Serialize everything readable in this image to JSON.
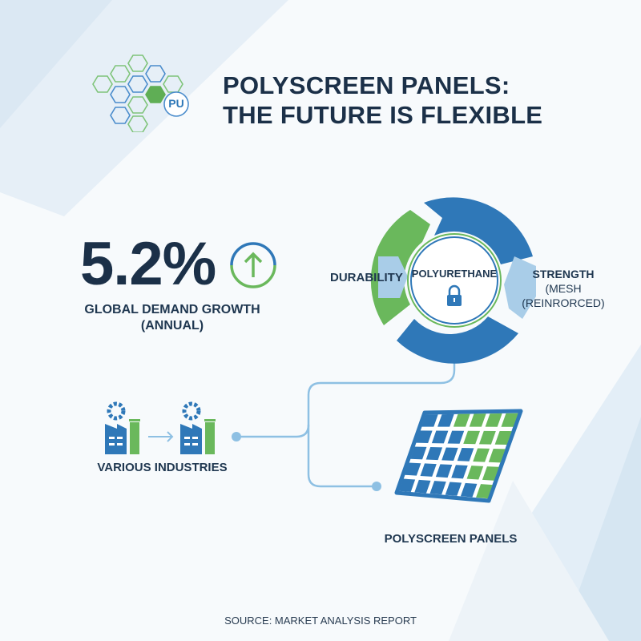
{
  "header": {
    "title_line1": "POLYSCREEN PANELS:",
    "title_line2": "THE FUTURE IS FLEXIBLE",
    "logo_text": "PU"
  },
  "stat": {
    "value": "5.2%",
    "label_line1": "GLOBAL DEMAND GROWTH",
    "label_line2": "(ANNUAL)",
    "trend_icon": "arrow-up-circle-icon"
  },
  "cycle": {
    "center_label": "POLYURETHANE",
    "center_icon": "lock-icon",
    "left_label": "DURABILITY",
    "right_label_line1": "STRENGTH",
    "right_label_line2": "(MESH",
    "right_label_line3": "(REINRORCED)"
  },
  "industries": {
    "label": "VARIOUS INDUSTRIES",
    "icon": "factory-icon"
  },
  "panels": {
    "label": "POLYSCREEN PANELS",
    "icon": "solar-panel-grid-icon"
  },
  "footer": {
    "source": "SOURCE: MARKET ANALYSIS REPORT"
  },
  "colors": {
    "blue": "#2f78b8",
    "green": "#6ab85c",
    "light_blue": "#a9cde8",
    "navy": "#1b3048"
  }
}
